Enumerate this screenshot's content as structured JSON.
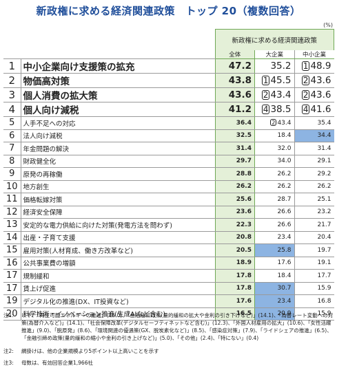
{
  "title": "新政権に求める経済関連政策　トップ 20（複数回答）",
  "unit": "(%)",
  "header": {
    "group": "新政権に求める経済関連政策",
    "total": "全体",
    "large": "大企業",
    "sme": "中小企業"
  },
  "chart_data": {
    "type": "table",
    "columns": [
      "全体",
      "大企業",
      "中小企業"
    ],
    "rows": [
      {
        "rank": "1",
        "item": "中小企業向け支援策の拡充",
        "total": "47.2",
        "large": "35.2",
        "sme": "48.9",
        "sme_rank": "1",
        "big": true
      },
      {
        "rank": "2",
        "item": "物価高対策",
        "total": "43.8",
        "large": "45.5",
        "sme": "43.6",
        "large_rank": "1",
        "sme_rank": "2",
        "big": true
      },
      {
        "rank": "3",
        "item": "個人消費の拡大策",
        "total": "43.6",
        "large": "43.4",
        "sme": "43.6",
        "large_rank": "2",
        "sme_rank": "2",
        "big": true
      },
      {
        "rank": "4",
        "item": "個人向け減税",
        "total": "41.2",
        "large": "38.5",
        "sme": "41.6",
        "large_rank": "4",
        "sme_rank": "4",
        "big": true
      },
      {
        "rank": "5",
        "item": "人手不足への対応",
        "total": "36.4",
        "large": "43.4",
        "sme": "35.4",
        "large_rank": "2"
      },
      {
        "rank": "6",
        "item": "法人向け減税",
        "total": "32.5",
        "large": "18.4",
        "sme": "34.4",
        "hl": "sme"
      },
      {
        "rank": "7",
        "item": "年金問題の解決",
        "total": "31.4",
        "large": "32.0",
        "sme": "31.4"
      },
      {
        "rank": "8",
        "item": "財政健全化",
        "total": "29.7",
        "large": "34.0",
        "sme": "29.1"
      },
      {
        "rank": "9",
        "item": "原発の再稼働",
        "total": "28.8",
        "large": "26.2",
        "sme": "29.2"
      },
      {
        "rank": "10",
        "item": "地方創生",
        "total": "26.2",
        "large": "26.2",
        "sme": "26.2"
      },
      {
        "rank": "11",
        "item": "価格転嫁対策",
        "total": "25.6",
        "large": "28.7",
        "sme": "25.1"
      },
      {
        "rank": "12",
        "item": "経済安全保障",
        "total": "23.6",
        "large": "26.6",
        "sme": "23.2"
      },
      {
        "rank": "13",
        "item": "安定的な電力供給に向けた対策(発電方法を問わず)",
        "total": "22.3",
        "large": "26.6",
        "sme": "21.7"
      },
      {
        "rank": "14",
        "item": "出産・子育て支援",
        "total": "20.8",
        "large": "23.4",
        "sme": "20.4"
      },
      {
        "rank": "15",
        "item": "雇用対策(人材育成、働き方改革など)",
        "total": "20.5",
        "large": "25.8",
        "sme": "19.7",
        "hl": "large"
      },
      {
        "rank": "16",
        "item": "公共事業費の増額",
        "total": "18.9",
        "large": "17.6",
        "sme": "19.1"
      },
      {
        "rank": "17",
        "item": "規制緩和",
        "total": "17.8",
        "large": "18.4",
        "sme": "17.7"
      },
      {
        "rank": "17",
        "item": "賃上げ促進",
        "total": "17.8",
        "large": "30.7",
        "sme": "15.9",
        "hl": "large"
      },
      {
        "rank": "19",
        "item": "デジタル化の推進(DX、IT投資など)",
        "total": "17.6",
        "large": "23.4",
        "sme": "16.8",
        "hl": "large"
      },
      {
        "rank": "20",
        "item": "科学技術・イノベーション推進(生成AIなど含む)",
        "total": "16.5",
        "large": "20.9",
        "sme": "15.9",
        "hl": "large"
      }
    ]
  },
  "notes": [
    {
      "label": "注1:",
      "text": "以下、「再生可能エネルギーの推進」(16.0)、「金融緩和政策(量的緩和の拡大や金利の引き下げなど)」(14.1)、「為替レート変動への対策(為替介入など)」(14.1)、「社会保障改革(デジタルセーフティネットなど含む)」(12.3)、「外国人材雇用の拡大」(10.6)、「女性活躍推進」(9.0)、「脱原発」(8.6)、「環境関連の優遇策(GX、脱炭素化など)」(8.5)、「感染症対策」(7.9)、「ライドシェアの推進」(6.5)、「金融引締め政策(量的緩和の縮小や金利の引き上げなど)」(5.0)、「その他」(2.4)、「特にない」(0.4)"
    },
    {
      "label": "注2:",
      "text": "網掛けは、他の企業規模より5ポイント以上高いことを示す"
    },
    {
      "label": "注3:",
      "text": "母数は、有効回答企業1,966社"
    }
  ]
}
